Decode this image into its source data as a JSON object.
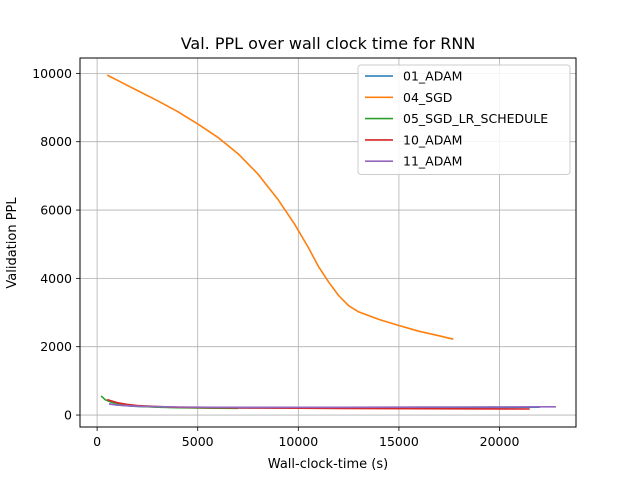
{
  "chart_data": {
    "type": "line",
    "title": "Val. PPL over wall clock time for RNN",
    "xlabel": "Wall-clock-time (s)",
    "ylabel": "Validation PPL",
    "xlim": [
      -850,
      23800
    ],
    "ylim": [
      -350,
      10450
    ],
    "xticks": [
      0,
      5000,
      10000,
      15000,
      20000
    ],
    "yticks": [
      0,
      2000,
      4000,
      6000,
      8000,
      10000
    ],
    "grid": true,
    "legend_position": "top-right",
    "series": [
      {
        "name": "01_ADAM",
        "color": "#1f77b4",
        "points": [
          [
            600,
            330
          ],
          [
            1000,
            290
          ],
          [
            2000,
            250
          ],
          [
            4000,
            220
          ],
          [
            6000,
            210
          ],
          [
            8000,
            205
          ],
          [
            10000,
            210
          ],
          [
            12000,
            215
          ],
          [
            14000,
            212
          ],
          [
            16000,
            215
          ],
          [
            18000,
            220
          ],
          [
            20000,
            225
          ],
          [
            22000,
            230
          ]
        ]
      },
      {
        "name": "04_SGD",
        "color": "#ff7f0e",
        "points": [
          [
            500,
            9950
          ],
          [
            1000,
            9800
          ],
          [
            2000,
            9500
          ],
          [
            3000,
            9200
          ],
          [
            4000,
            8880
          ],
          [
            5000,
            8520
          ],
          [
            6000,
            8130
          ],
          [
            7000,
            7650
          ],
          [
            8000,
            7050
          ],
          [
            9000,
            6300
          ],
          [
            9800,
            5600
          ],
          [
            10500,
            4900
          ],
          [
            11000,
            4350
          ],
          [
            11500,
            3900
          ],
          [
            12000,
            3500
          ],
          [
            12500,
            3200
          ],
          [
            13000,
            3020
          ],
          [
            14000,
            2800
          ],
          [
            15000,
            2620
          ],
          [
            16000,
            2450
          ],
          [
            17000,
            2320
          ],
          [
            17700,
            2220
          ]
        ]
      },
      {
        "name": "05_SGD_LR_SCHEDULE",
        "color": "#2ca02c",
        "points": [
          [
            200,
            560
          ],
          [
            400,
            450
          ],
          [
            700,
            380
          ],
          [
            1200,
            310
          ],
          [
            2000,
            260
          ],
          [
            3000,
            230
          ],
          [
            4000,
            215
          ],
          [
            5000,
            205
          ],
          [
            6000,
            200
          ],
          [
            7000,
            198
          ]
        ]
      },
      {
        "name": "10_ADAM",
        "color": "#d62728",
        "points": [
          [
            500,
            450
          ],
          [
            1000,
            360
          ],
          [
            1500,
            310
          ],
          [
            2000,
            280
          ],
          [
            3000,
            250
          ],
          [
            4000,
            230
          ],
          [
            6000,
            215
          ],
          [
            8000,
            205
          ],
          [
            10000,
            200
          ],
          [
            12000,
            195
          ],
          [
            14000,
            190
          ],
          [
            16000,
            185
          ],
          [
            18000,
            182
          ],
          [
            20000,
            180
          ],
          [
            21500,
            178
          ]
        ]
      },
      {
        "name": "11_ADAM",
        "color": "#9467bd",
        "points": [
          [
            600,
            320
          ],
          [
            1000,
            290
          ],
          [
            2000,
            260
          ],
          [
            3000,
            245
          ],
          [
            4000,
            235
          ],
          [
            6000,
            228
          ],
          [
            8000,
            226
          ],
          [
            10000,
            226
          ],
          [
            12000,
            228
          ],
          [
            14000,
            230
          ],
          [
            16000,
            232
          ],
          [
            18000,
            235
          ],
          [
            20000,
            238
          ],
          [
            22000,
            240
          ],
          [
            22800,
            240
          ]
        ]
      }
    ]
  }
}
